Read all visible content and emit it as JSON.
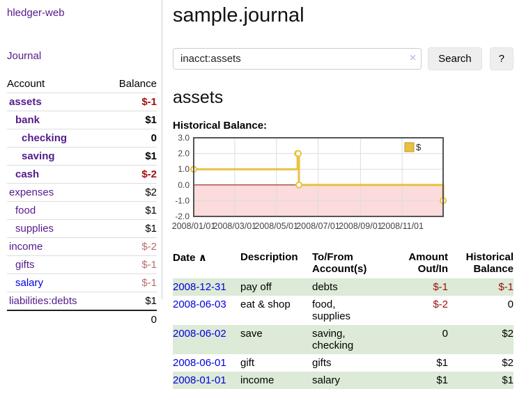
{
  "sidebar": {
    "brand": "hledger-web",
    "journal_link": "Journal",
    "accounts": {
      "headers": {
        "account": "Account",
        "balance": "Balance"
      },
      "rows": [
        {
          "name": "assets",
          "depth": 1,
          "bold": true,
          "balance": "$-1",
          "style": "neg-strong"
        },
        {
          "name": "bank",
          "depth": 2,
          "bold": true,
          "balance": "$1",
          "style": "pos"
        },
        {
          "name": "checking",
          "depth": 3,
          "bold": true,
          "balance": "0",
          "style": "pos"
        },
        {
          "name": "saving",
          "depth": 3,
          "bold": true,
          "balance": "$1",
          "style": "pos"
        },
        {
          "name": "cash",
          "depth": 2,
          "bold": true,
          "balance": "$-2",
          "style": "neg-strong"
        },
        {
          "name": "expenses",
          "depth": 1,
          "bold": false,
          "balance": "$2",
          "style": "pos"
        },
        {
          "name": "food",
          "depth": 2,
          "bold": false,
          "balance": "$1",
          "style": "pos"
        },
        {
          "name": "supplies",
          "depth": 2,
          "bold": false,
          "balance": "$1",
          "style": "pos"
        },
        {
          "name": "income",
          "depth": 1,
          "bold": false,
          "balance": "$-2",
          "style": "neg"
        },
        {
          "name": "gifts",
          "depth": 2,
          "bold": false,
          "balance": "$-1",
          "style": "neg"
        },
        {
          "name": "salary",
          "depth": 2,
          "bold": false,
          "blue": true,
          "balance": "$-1",
          "style": "neg"
        },
        {
          "name": "liabilities:debts",
          "depth": 1,
          "bold": false,
          "balance": "$1",
          "style": "pos"
        }
      ],
      "total": "0"
    }
  },
  "main": {
    "title": "sample.journal",
    "search": {
      "value": "inacct:assets",
      "clear_icon": "×",
      "button_label": "Search",
      "help_label": "?"
    },
    "account_heading": "assets",
    "chart_label": "Historical Balance:"
  },
  "chart_data": {
    "type": "line",
    "step": true,
    "title": "Historical Balance",
    "series": [
      {
        "name": "$",
        "color": "#e8c240",
        "points": [
          {
            "date": "2008-01-01",
            "value": 1
          },
          {
            "date": "2008-06-01",
            "value": 2
          },
          {
            "date": "2008-06-02",
            "value": 2
          },
          {
            "date": "2008-06-03",
            "value": 0
          },
          {
            "date": "2008-12-31",
            "value": -1
          }
        ]
      }
    ],
    "x_start": "2008-01-01",
    "x_end": "2008-12-31",
    "xticks": [
      {
        "date": "2008-01-01",
        "label": "2008/01/01"
      },
      {
        "date": "2008-03-01",
        "label": "2008/03/01"
      },
      {
        "date": "2008-05-01",
        "label": "2008/05/01"
      },
      {
        "date": "2008-07-01",
        "label": "2008/07/01"
      },
      {
        "date": "2008-09-01",
        "label": "2008/09/01"
      },
      {
        "date": "2008-11-01",
        "label": "2008/11/01"
      }
    ],
    "ylim": [
      -2.0,
      3.0
    ],
    "yticks": [
      "3.0",
      "2.0",
      "1.0",
      "0.0",
      "-1.0",
      "-2.0"
    ],
    "grid": true,
    "legend": {
      "label": "$",
      "position": "top-right"
    },
    "negative_fill": "#fbdbdb",
    "zero_line_color": "#8b0000",
    "border_color": "#545454"
  },
  "register": {
    "headers": {
      "date": "Date",
      "sort_indicator": "∧",
      "description": "Description",
      "accounts": "To/From Account(s)",
      "amount": "Amount Out/In",
      "balance": "Historical Balance"
    },
    "rows": [
      {
        "date": "2008-12-31",
        "description": "pay off",
        "accounts": "debts",
        "amount": "$-1",
        "amount_neg": true,
        "balance": "$-1",
        "balance_neg": true,
        "green": true
      },
      {
        "date": "2008-06-03",
        "description": "eat & shop",
        "accounts": "food, supplies",
        "amount": "$-2",
        "amount_neg": true,
        "balance": "0",
        "balance_neg": false,
        "green": false
      },
      {
        "date": "2008-06-02",
        "description": "save",
        "accounts": "saving, checking",
        "amount": "0",
        "amount_neg": false,
        "balance": "$2",
        "balance_neg": false,
        "green": true
      },
      {
        "date": "2008-06-01",
        "description": "gift",
        "accounts": "gifts",
        "amount": "$1",
        "amount_neg": false,
        "balance": "$2",
        "balance_neg": false,
        "green": false
      },
      {
        "date": "2008-01-01",
        "description": "income",
        "accounts": "salary",
        "amount": "$1",
        "amount_neg": false,
        "balance": "$1",
        "balance_neg": false,
        "green": true
      }
    ]
  }
}
